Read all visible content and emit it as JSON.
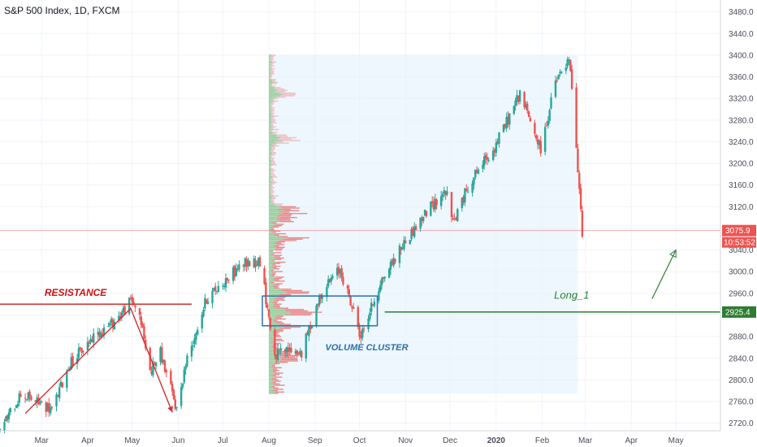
{
  "header": {
    "title": "S&P 500 Index, 1D, FXCM"
  },
  "chart_data": {
    "type": "candlestick",
    "title": "S&P 500 Index, 1D, FXCM",
    "y_ticks": [
      2720,
      2760,
      2800,
      2840,
      2880,
      2920,
      2960,
      3000,
      3040,
      3080,
      3120,
      3160,
      3200,
      3240,
      3280,
      3320,
      3360,
      3400,
      3440,
      3480
    ],
    "y_tick_labels": [
      "2720.0",
      "2760.0",
      "2800.0",
      "2840.0",
      "2880.0",
      "2920.0",
      "2960.0",
      "3000.0",
      "3040.0",
      "3080.0",
      "3120.0",
      "3160.0",
      "3200.0",
      "3240.0",
      "3280.0",
      "3320.0",
      "3360.0",
      "3400.0",
      "3440.0",
      "3480.0"
    ],
    "ylim": [
      2706,
      3502
    ],
    "x_axis": {
      "start": "2019-02-01",
      "end": "2020-05-31",
      "ticks": [
        {
          "date": "2019-03-01",
          "label": "Mar"
        },
        {
          "date": "2019-04-01",
          "label": "Apr"
        },
        {
          "date": "2019-05-01",
          "label": "May"
        },
        {
          "date": "2019-06-01",
          "label": "Jun"
        },
        {
          "date": "2019-07-01",
          "label": "Jul"
        },
        {
          "date": "2019-08-01",
          "label": "Aug"
        },
        {
          "date": "2019-09-01",
          "label": "Sep"
        },
        {
          "date": "2019-10-01",
          "label": "Oct"
        },
        {
          "date": "2019-11-01",
          "label": "Nov"
        },
        {
          "date": "2019-12-01",
          "label": "Dec"
        },
        {
          "date": "2020-01-01",
          "label": "2020"
        },
        {
          "date": "2020-02-01",
          "label": "Feb"
        },
        {
          "date": "2020-03-01",
          "label": "Mar"
        },
        {
          "date": "2020-04-01",
          "label": "Apr"
        },
        {
          "date": "2020-05-01",
          "label": "May"
        }
      ]
    },
    "price_path": [
      [
        "2019-02-01",
        2705
      ],
      [
        "2019-02-15",
        2775
      ],
      [
        "2019-03-08",
        2745
      ],
      [
        "2019-03-20",
        2830
      ],
      [
        "2019-04-05",
        2880
      ],
      [
        "2019-04-20",
        2910
      ],
      [
        "2019-04-30",
        2945
      ],
      [
        "2019-05-05",
        2935
      ],
      [
        "2019-05-13",
        2815
      ],
      [
        "2019-05-20",
        2850
      ],
      [
        "2019-05-31",
        2745
      ],
      [
        "2019-06-06",
        2830
      ],
      [
        "2019-06-20",
        2950
      ],
      [
        "2019-07-05",
        2990
      ],
      [
        "2019-07-15",
        3015
      ],
      [
        "2019-07-26",
        3020
      ],
      [
        "2019-08-05",
        2845
      ],
      [
        "2019-08-15",
        2855
      ],
      [
        "2019-08-23",
        2850
      ],
      [
        "2019-09-05",
        2960
      ],
      [
        "2019-09-18",
        3005
      ],
      [
        "2019-10-02",
        2880
      ],
      [
        "2019-10-15",
        2980
      ],
      [
        "2019-10-28",
        3040
      ],
      [
        "2019-11-15",
        3110
      ],
      [
        "2019-11-28",
        3150
      ],
      [
        "2019-12-03",
        3090
      ],
      [
        "2019-12-15",
        3170
      ],
      [
        "2019-12-31",
        3230
      ],
      [
        "2020-01-17",
        3330
      ],
      [
        "2020-01-31",
        3225
      ],
      [
        "2020-02-10",
        3350
      ],
      [
        "2020-02-19",
        3390
      ],
      [
        "2020-02-21",
        3340
      ],
      [
        "2020-02-24",
        3220
      ],
      [
        "2020-02-27",
        3110
      ],
      [
        "2020-02-28",
        3075
      ]
    ],
    "current_price": 3075.9,
    "current_price_label": "3075.9",
    "countdown_label": "10:53:52",
    "level_label": "2925.4",
    "levels": [
      {
        "name": "resistance",
        "price": 2940,
        "from": "2019-02-01",
        "to": "2019-06-10",
        "color": "#d32f2f"
      },
      {
        "name": "long-entry",
        "price": 2925.4,
        "from": "2019-10-18",
        "to": "2020-05-31",
        "color": "#2e7d32"
      }
    ],
    "volume_profile": {
      "date_from": "2019-08-01",
      "date_to": "2020-02-25",
      "price_low": 2775,
      "price_high": 3400,
      "poc_price": 2925,
      "low_end_high": [
        2840,
        2900,
        2960
      ],
      "mid_high": [
        3060,
        3100,
        3115
      ],
      "upper_high": [
        3245,
        3330
      ]
    },
    "cluster_box": {
      "price_low": 2900,
      "price_high": 2955,
      "date_from": "2019-08-01",
      "date_to": "2019-10-13",
      "color": "#2a6fb0"
    },
    "annotations": [
      {
        "text": "RESISTANCE",
        "color": "#d01010"
      },
      {
        "text": "VOLUME CLUSTER",
        "color": "#2a6fb0"
      },
      {
        "text": "Long_1",
        "color": "#2e7d32"
      }
    ],
    "colors": {
      "up": "#26a69a",
      "down": "#ef5350",
      "grid": "#f0f3fa",
      "profile_up": "#8cc98f",
      "profile_down": "#e87c7c",
      "profile_bg": "#e3f2fd"
    }
  }
}
